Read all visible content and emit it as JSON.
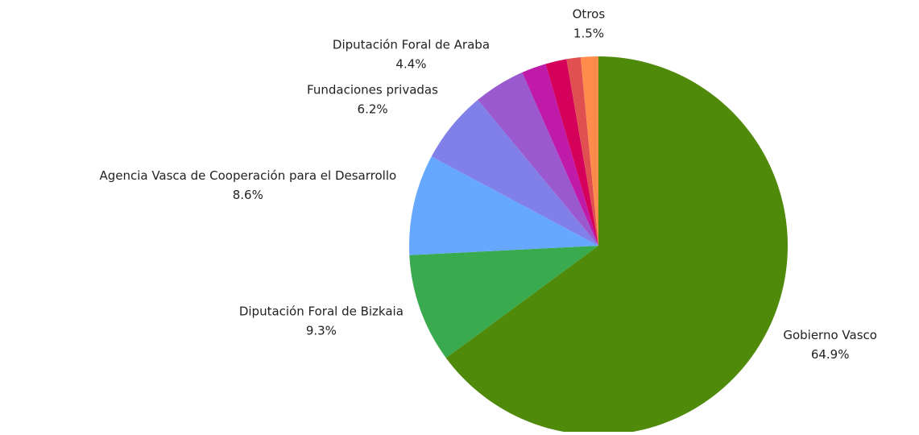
{
  "chart_data": {
    "type": "pie",
    "categories": [
      "Gobierno Vasco",
      "Diputación Foral de Bizkaia",
      "Agencia Vasca de Cooperación para el Desarrollo",
      "Fundaciones privadas",
      "Diputación Foral de Araba",
      null,
      null,
      null,
      "Otros"
    ],
    "values": [
      64.9,
      9.3,
      8.6,
      6.2,
      4.4,
      2.1,
      1.8,
      1.2,
      1.5
    ],
    "value_labels": [
      "64.9%",
      "9.3%",
      "8.6%",
      "6.2%",
      "4.4%",
      null,
      null,
      null,
      "1.5%"
    ],
    "colors": [
      "#4f8a0b",
      "#3aaa4f",
      "#66a8ff",
      "#8080e8",
      "#9b59d0",
      "#bf1aa8",
      "#d4005a",
      "#e05050",
      "#ff8c4a"
    ]
  }
}
